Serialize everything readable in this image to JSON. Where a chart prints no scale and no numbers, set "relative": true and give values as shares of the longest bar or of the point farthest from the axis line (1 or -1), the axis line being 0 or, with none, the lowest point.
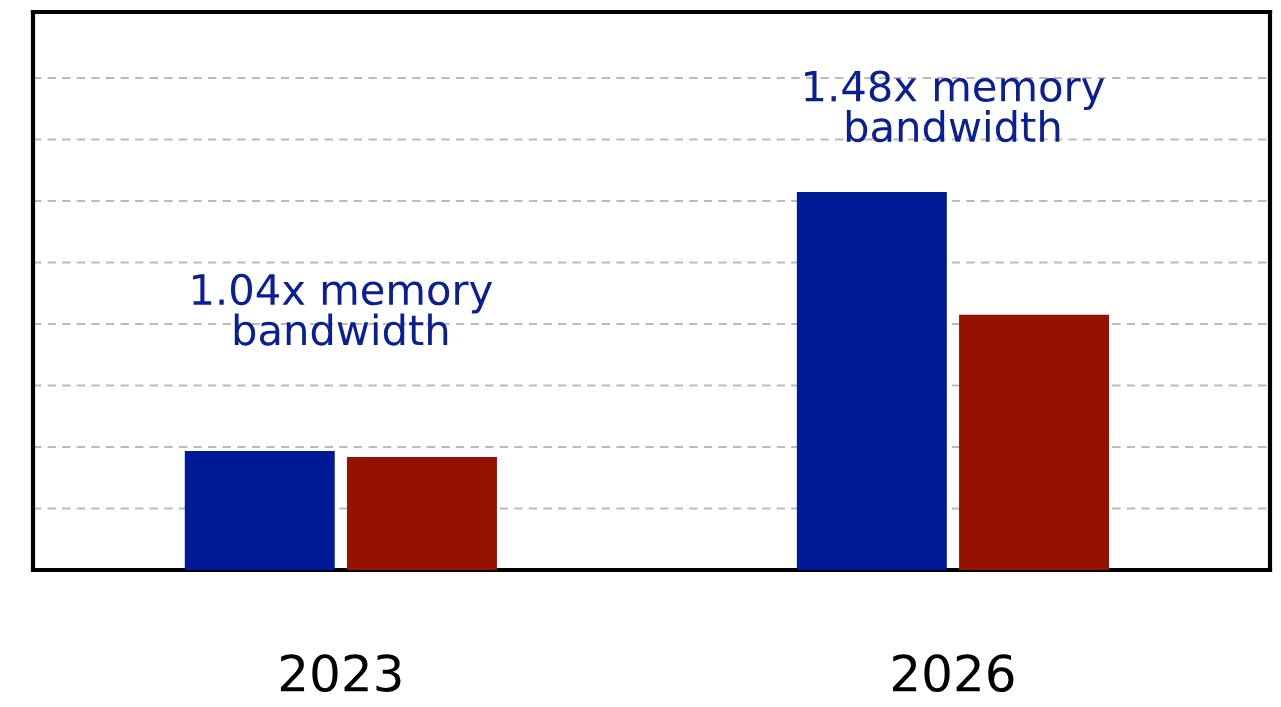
{
  "chart_data": {
    "type": "bar",
    "relative": true,
    "categories": [
      "2023",
      "2026"
    ],
    "series": [
      {
        "color": "#001a96",
        "values": [
          0.315,
          1
        ]
      },
      {
        "color": "#951200",
        "values": [
          0.299,
          0.675
        ]
      }
    ],
    "grid": "y",
    "annotations": [
      "1.04x memory bandwidth",
      "1.48x memory bandwidth"
    ]
  }
}
